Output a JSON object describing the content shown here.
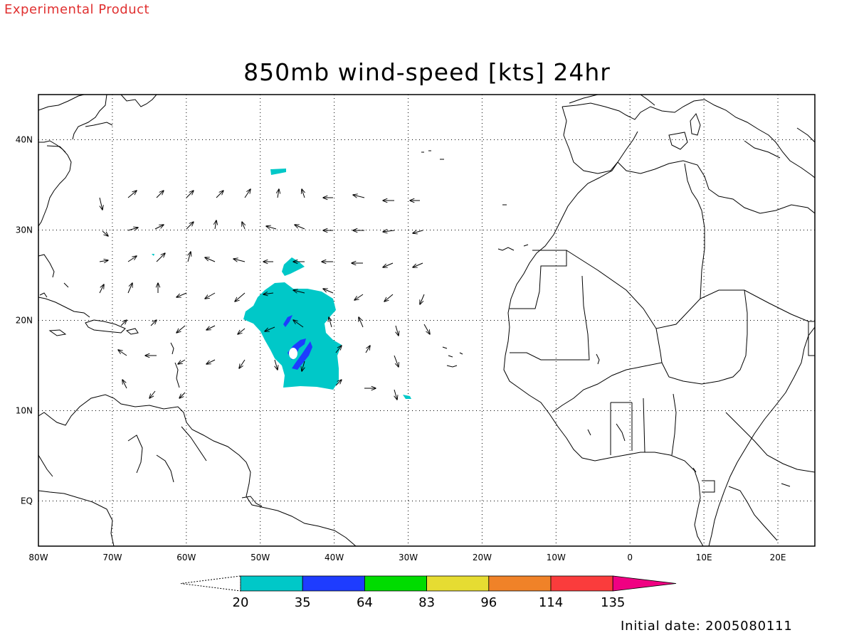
{
  "header": {
    "experimental_label": "Experimental Product",
    "title": "850mb wind-speed [kts] 24hr"
  },
  "footer": {
    "initial_date": "Initial date: 2005080111"
  },
  "map": {
    "lon_range": [
      -80,
      25
    ],
    "lat_range": [
      -5,
      45
    ],
    "lon_ticks": [
      {
        "value": -80,
        "label": "80W"
      },
      {
        "value": -70,
        "label": "70W"
      },
      {
        "value": -60,
        "label": "60W"
      },
      {
        "value": -50,
        "label": "50W"
      },
      {
        "value": -40,
        "label": "40W"
      },
      {
        "value": -30,
        "label": "30W"
      },
      {
        "value": -20,
        "label": "20W"
      },
      {
        "value": -10,
        "label": "10W"
      },
      {
        "value": 0,
        "label": "0"
      },
      {
        "value": 10,
        "label": "10E"
      },
      {
        "value": 20,
        "label": "20E"
      }
    ],
    "lat_ticks": [
      {
        "value": 40,
        "label": "40N"
      },
      {
        "value": 30,
        "label": "30N"
      },
      {
        "value": 20,
        "label": "20N"
      },
      {
        "value": 10,
        "label": "10N"
      },
      {
        "value": 0,
        "label": "EQ"
      }
    ],
    "grid": "dotted",
    "colors": {
      "land_outline": "#000000",
      "shade_20_35": "#00c8c8",
      "shade_35_64": "#1e3cff"
    }
  },
  "colorbar": {
    "thresholds": [
      "20",
      "35",
      "64",
      "83",
      "96",
      "114",
      "135"
    ],
    "colors": [
      "#00c8c8",
      "#1e3cff",
      "#00dc00",
      "#e6dc32",
      "#f08228",
      "#fa3c3c",
      "#f00082"
    ],
    "left_end": "open-triangle",
    "right_end": "filled-triangle"
  }
}
